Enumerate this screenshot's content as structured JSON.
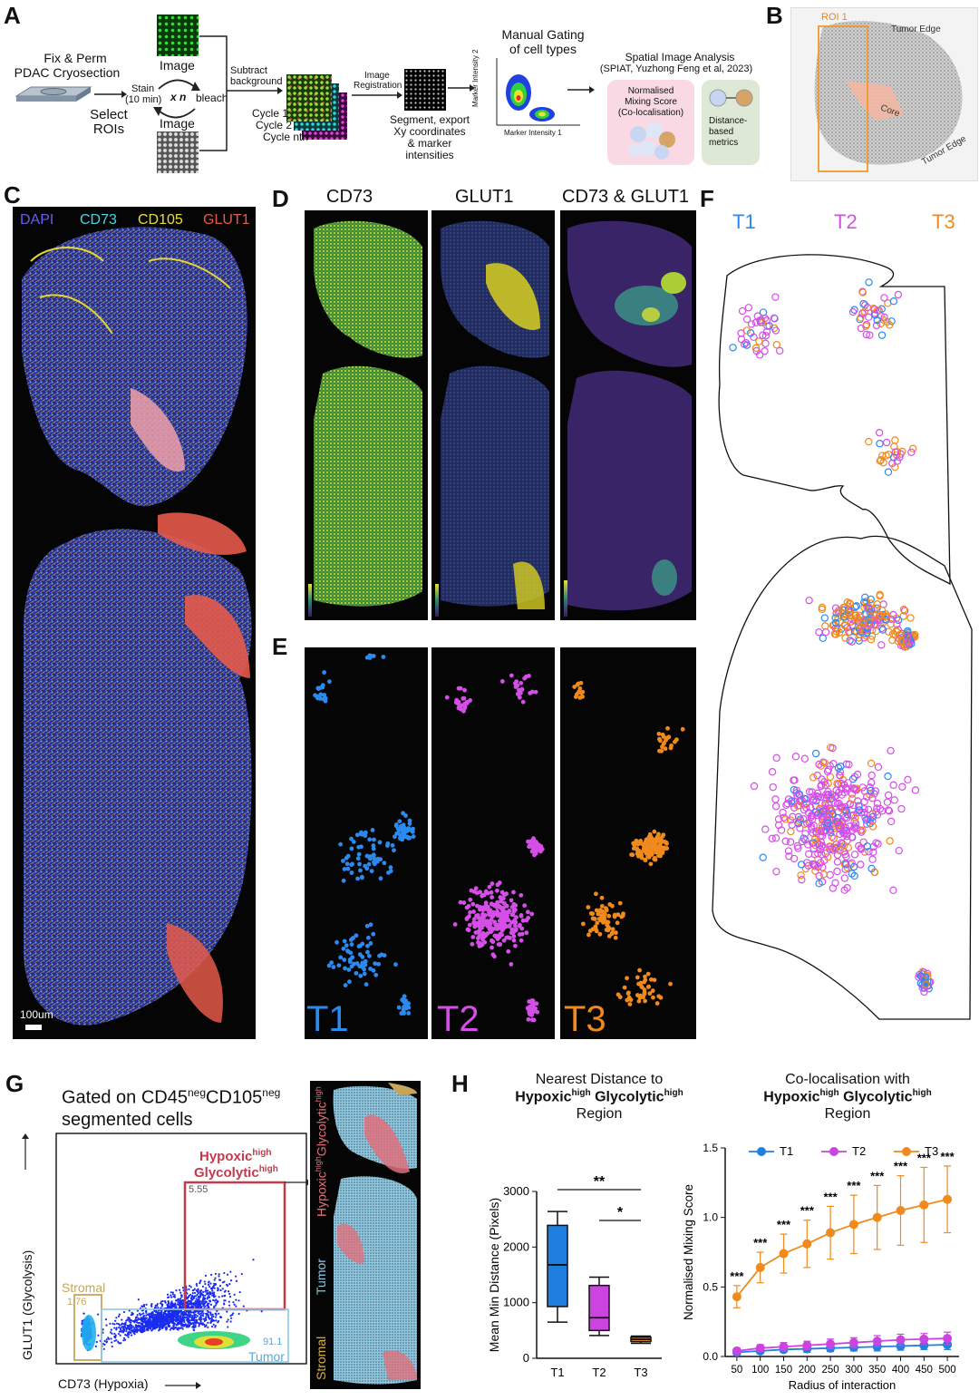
{
  "panels": {
    "A": "A",
    "B": "B",
    "C": "C",
    "D": "D",
    "E": "E",
    "F": "F",
    "G": "G",
    "H": "H"
  },
  "panel_a": {
    "fix_perm": "Fix & Perm",
    "pdac": "PDAC Cryosection",
    "select": "Select",
    "rois": "ROIs",
    "stain": "Stain",
    "stain_time": "(10 min)",
    "x_n": "x n",
    "bleach": "bleach",
    "image_top": "Image",
    "image_bottom": "Image",
    "subtract": "Subtract",
    "background": "background",
    "cycle1": "Cycle 1",
    "cycle2": "Cycle 2",
    "cyclen": "Cycle nth",
    "image_reg1": "Image",
    "image_reg2": "Registration",
    "segment1": "Segment, export",
    "segment2": "Xy coordinates",
    "segment3": "& marker",
    "segment4": "intensities",
    "manual1": "Manual Gating",
    "manual2": "of cell types",
    "marker_y": "Marker Intensity 2",
    "marker_x": "Marker Intensity 1",
    "spiat1": "Spatial Image Analysis",
    "spiat2": "(SPIAT, Yuzhong Feng et al, 2023)",
    "nms1": "Normalised",
    "nms2": "Mixing Score",
    "nms3": "(Co-localisation)",
    "dist1": "Distance-",
    "dist2": "based",
    "dist3": "metrics"
  },
  "panel_b": {
    "roi": "ROI 1",
    "tumor_edge_top": "Tumor Edge",
    "core": "Core",
    "tumor_edge_bottom": "Tumor Edge"
  },
  "panel_c": {
    "dapi": "DAPI",
    "cd73": "CD73",
    "cd105": "CD105",
    "glut1": "GLUT1",
    "scale": "100um"
  },
  "panel_d": {
    "cd73": "CD73",
    "glut1": "GLUT1",
    "both": "CD73 & GLUT1"
  },
  "panel_e": {
    "t1": "T1",
    "t2": "T2",
    "t3": "T3"
  },
  "panel_f": {
    "t1": "T1",
    "t2": "T2",
    "t3": "T3"
  },
  "panel_g": {
    "gated1": "Gated on CD45",
    "neg1": "neg",
    "gated2": "CD105",
    "neg2": "neg",
    "gated3": "segmented cells",
    "hyp": "Hypoxic",
    "hyp_sup": "high",
    "gly": "Glycolytic",
    "gly_sup": "high",
    "hyp_pct": "5.55",
    "stromal": "Stromal",
    "stromal_pct": "1.76",
    "tumor_pct": "91.1",
    "tumor": "Tumor",
    "ylabel": "GLUT1 (Glycolysis)",
    "xlabel": "CD73 (Hypoxia)",
    "side_stromal": "Stromal",
    "side_tumor": "Tumor",
    "side_hyp": "Hypoxic",
    "side_hyp_sup": "high",
    "side_gly": "Glycolytic",
    "side_gly_sup": "high"
  },
  "panel_h": {
    "box_title1": "Nearest Distance to",
    "box_title2a": "Hypoxic",
    "box_title2b": "high",
    "box_title2c": " Glycolytic",
    "box_title2d": "high",
    "box_title3": "Region",
    "line_title1": "Co-localisation with",
    "line_title3": "Region"
  },
  "chart_data": [
    {
      "type": "box",
      "title": "Nearest Distance to Hypoxichigh Glycolytichigh Region",
      "ylabel": "Mean  Min Distance (Pixels)",
      "ylim": [
        0,
        3000
      ],
      "yticks": [
        0,
        1000,
        2000,
        3000
      ],
      "categories": [
        "T1",
        "T2",
        "T3"
      ],
      "colors": [
        "#1f7fe0",
        "#cc44e0",
        "#f08a1c"
      ],
      "boxes": [
        {
          "name": "T1",
          "min": 650,
          "q1": 930,
          "median": 1680,
          "q3": 2390,
          "max": 2640
        },
        {
          "name": "T2",
          "min": 410,
          "q1": 500,
          "median": 730,
          "q3": 1310,
          "max": 1460
        },
        {
          "name": "T3",
          "min": 270,
          "q1": 300,
          "median": 340,
          "q3": 380,
          "max": 400
        }
      ],
      "significance": [
        {
          "from": "T1",
          "to": "T3",
          "label": "**"
        },
        {
          "from": "T2",
          "to": "T3",
          "label": "*"
        }
      ]
    },
    {
      "type": "line",
      "title": "Co-localisation with Hypoxichigh Glycolytichigh Region",
      "xlabel": "Radius of interaction",
      "ylabel": "Normalised Mixing Score",
      "ylim": [
        0,
        1.5
      ],
      "yticks": [
        "0.0",
        "0.5",
        "1.0",
        "1.5"
      ],
      "x": [
        50,
        100,
        150,
        200,
        250,
        300,
        350,
        400,
        450,
        500
      ],
      "series": [
        {
          "name": "T1",
          "color": "#1f7fe0",
          "values": [
            0.03,
            0.04,
            0.05,
            0.055,
            0.06,
            0.065,
            0.07,
            0.075,
            0.08,
            0.085
          ],
          "err": [
            0.02,
            0.02,
            0.02,
            0.025,
            0.025,
            0.025,
            0.03,
            0.03,
            0.03,
            0.035
          ]
        },
        {
          "name": "T2",
          "color": "#cc44e0",
          "values": [
            0.04,
            0.06,
            0.07,
            0.08,
            0.09,
            0.1,
            0.11,
            0.12,
            0.125,
            0.13
          ],
          "err": [
            0.02,
            0.025,
            0.03,
            0.03,
            0.035,
            0.035,
            0.04,
            0.04,
            0.04,
            0.045
          ]
        },
        {
          "name": "T3",
          "color": "#f08a1c",
          "values": [
            0.43,
            0.64,
            0.74,
            0.81,
            0.89,
            0.95,
            1.0,
            1.05,
            1.09,
            1.13
          ],
          "err": [
            0.08,
            0.11,
            0.14,
            0.17,
            0.19,
            0.21,
            0.23,
            0.25,
            0.27,
            0.24
          ]
        }
      ],
      "annotations": [
        "***",
        "***",
        "***",
        "***",
        "***",
        "***",
        "***",
        "***",
        "***",
        "***"
      ],
      "legend": "top"
    }
  ]
}
